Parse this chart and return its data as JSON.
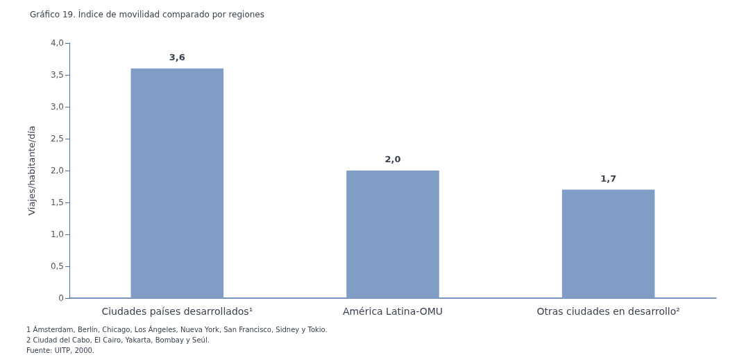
{
  "chart_data": {
    "type": "bar",
    "title": "Gráfico 19. Índice de movilidad comparado por regiones",
    "ylabel": "Viajes/habitante/día",
    "categories": [
      "Ciudades países desarrollados¹",
      "América Latina-OMU",
      "Otras ciudades en desarrollo²"
    ],
    "values": [
      3.6,
      2.0,
      1.7
    ],
    "value_labels": [
      "3,6",
      "2,0",
      "1,7"
    ],
    "color": "#7f9dc5",
    "ylim": [
      0,
      4
    ],
    "yticks": [
      0,
      {
        "value": 0.5,
        "label": "0,5"
      },
      {
        "value": 1,
        "label": "1,0"
      },
      {
        "value": 1.5,
        "label": "1,5"
      },
      {
        "value": 2,
        "label": "2,0"
      },
      {
        "value": 2.5,
        "label": "2,5"
      },
      {
        "value": 3,
        "label": "3,0"
      },
      {
        "value": 3.5,
        "label": "3,5"
      },
      {
        "value": 4,
        "label": "4,0"
      }
    ],
    "grid": false,
    "annotations": [
      "1 Ámsterdam, Berlín, Chicago, Los Ángeles, Nueva York, San Francisco, Sidney y Tokio.",
      "2 Ciudad del Cabo, El Cairo, Yakarta, Bombay y Seúl.",
      "Fuente: UITP, 2000."
    ]
  }
}
